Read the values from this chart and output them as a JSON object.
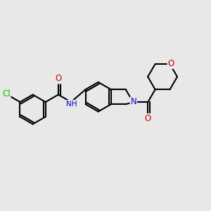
{
  "bg_color": "#e8e8e8",
  "bond_color": "#000000",
  "bond_width": 1.5,
  "atom_colors": {
    "Cl": "#00bb00",
    "O": "#cc0000",
    "N": "#0000cc",
    "NH": "#0000cc"
  },
  "font_size": 8.5,
  "fig_size": [
    3.0,
    3.0
  ],
  "dpi": 100
}
